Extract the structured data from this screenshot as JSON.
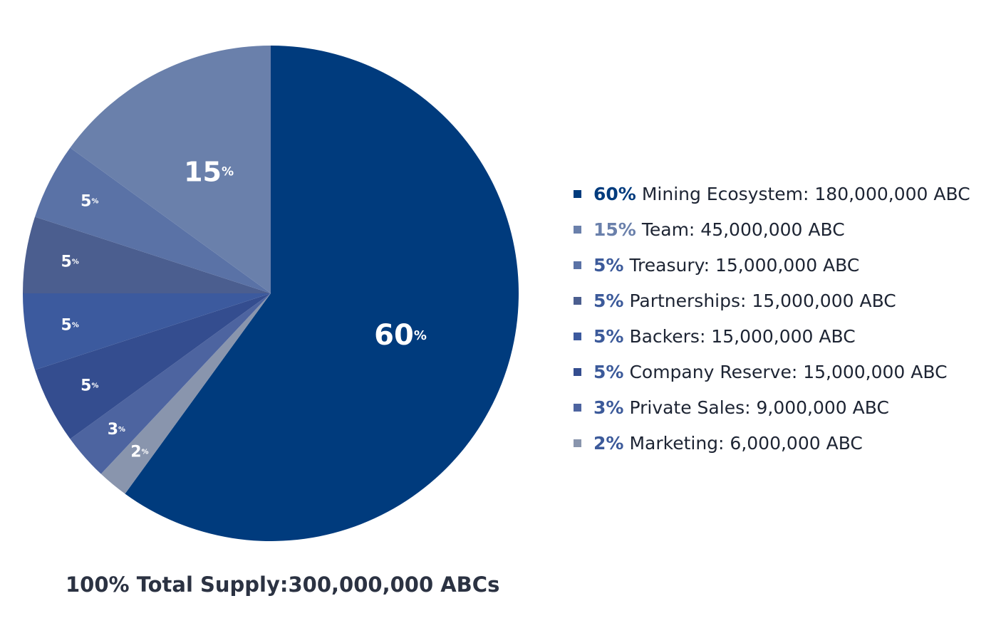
{
  "chart_data": {
    "type": "pie",
    "slices": [
      {
        "percent": 60,
        "label": "60",
        "color": "#003b7d",
        "legend_pct": "60%",
        "legend_text": "Mining Ecosystem: 180,000,000 ABC",
        "legend_pct_color": "#003b7d"
      },
      {
        "percent": 2,
        "label": "2",
        "color": "#8995ad",
        "legend_pct": "2%",
        "legend_text": "Marketing: 6,000,000 ABC",
        "legend_pct_color": "#3c5a9a"
      },
      {
        "percent": 3,
        "label": "3",
        "color": "#4d64a0",
        "legend_pct": "3%",
        "legend_text": "Private Sales: 9,000,000 ABC",
        "legend_pct_color": "#3c5a9a"
      },
      {
        "percent": 5,
        "label": "5",
        "color": "#344d8f",
        "legend_pct": "5%",
        "legend_text": "Company Reserve: 15,000,000 ABC",
        "legend_pct_color": "#3c5a9a"
      },
      {
        "percent": 5,
        "label": "5",
        "color": "#3c5a9e",
        "legend_pct": "5%",
        "legend_text": "Backers: 15,000,000 ABC",
        "legend_pct_color": "#3c5a9a"
      },
      {
        "percent": 5,
        "label": "5",
        "color": "#4b5e8f",
        "legend_pct": "5%",
        "legend_text": "Partnerships: 15,000,000 ABC",
        "legend_pct_color": "#3c5a9a"
      },
      {
        "percent": 5,
        "label": "5",
        "color": "#5a72a6",
        "legend_pct": "5%",
        "legend_text": "Treasury: 15,000,000 ABC",
        "legend_pct_color": "#3c5a9a"
      },
      {
        "percent": 15,
        "label": "15",
        "color": "#6a80ab",
        "legend_pct": "15%",
        "legend_text": "Team: 45,000,000 ABC",
        "legend_pct_color": "#6a80ab"
      }
    ],
    "legend_order": [
      0,
      7,
      6,
      5,
      4,
      3,
      2,
      1
    ],
    "legend_placement": "right",
    "percent_sign": "%"
  },
  "footer": {
    "total_supply": "100% Total Supply:300,000,000 ABCs"
  }
}
